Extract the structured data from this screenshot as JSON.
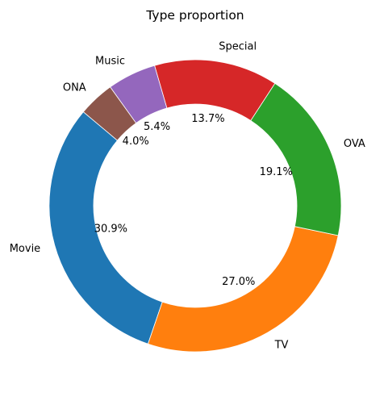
{
  "chart_data": {
    "type": "pie",
    "style": "donut",
    "title": "Type proportion",
    "slices": [
      {
        "label": "Movie",
        "value": 30.9,
        "pct_label": "30.9%",
        "color": "#1f77b4"
      },
      {
        "label": "TV",
        "value": 27.0,
        "pct_label": "27.0%",
        "color": "#ff7f0e"
      },
      {
        "label": "OVA",
        "value": 19.1,
        "pct_label": "19.1%",
        "color": "#2ca02c"
      },
      {
        "label": "Special",
        "value": 13.7,
        "pct_label": "13.7%",
        "color": "#d62728"
      },
      {
        "label": "Music",
        "value": 5.4,
        "pct_label": "5.4%",
        "color": "#9467bd"
      },
      {
        "label": "ONA",
        "value": 4.0,
        "pct_label": "4.0%",
        "color": "#8c564b"
      }
    ],
    "start_angle_deg": 140,
    "direction": "counterclockwise",
    "legend": "none"
  }
}
